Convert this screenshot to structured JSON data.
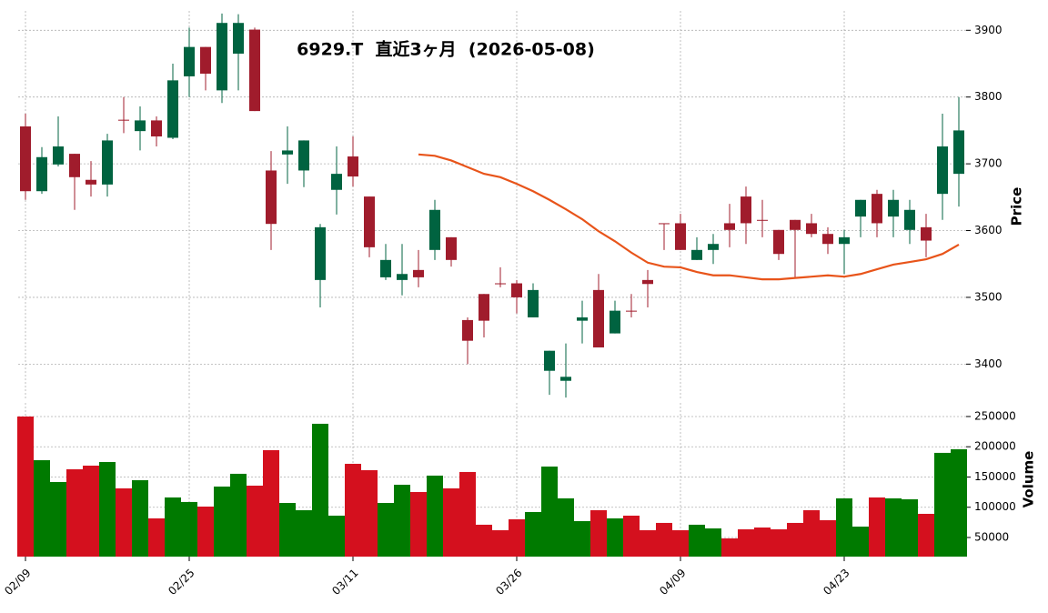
{
  "chart_data": [
    {
      "type": "candlestick",
      "title": "6929.T  直近3ヶ月  (2026-05-08)",
      "ylabel": "Price",
      "categories": [
        "02/09",
        null,
        null,
        null,
        null,
        null,
        null,
        null,
        null,
        null,
        "02/25",
        null,
        null,
        null,
        null,
        null,
        null,
        null,
        null,
        null,
        "03/11",
        null,
        null,
        null,
        null,
        null,
        null,
        null,
        null,
        null,
        "03/26",
        null,
        null,
        null,
        null,
        null,
        null,
        null,
        null,
        null,
        "04/09",
        null,
        null,
        null,
        null,
        null,
        null,
        null,
        null,
        null,
        "04/23",
        null,
        null,
        null,
        null,
        null,
        null,
        null
      ],
      "open": [
        3756,
        3659,
        3699,
        3715,
        3676,
        3669,
        3766,
        3749,
        3765,
        3739,
        3831,
        3875,
        3810,
        3865,
        3901,
        3690,
        3714,
        3690,
        3526,
        3661,
        3711,
        3651,
        3530,
        3526,
        3541,
        3571,
        3590,
        3466,
        3505,
        3521,
        3521,
        3470,
        3390,
        3375,
        3465,
        3511,
        3446,
        3480,
        3526,
        3611,
        3611,
        3556,
        3571,
        3611,
        3651,
        3616,
        3601,
        3616,
        3611,
        3595,
        3580,
        3621,
        3655,
        3621,
        3601,
        3605,
        3655,
        3685
      ],
      "high": [
        3775,
        3725,
        3771,
        3715,
        3704,
        3745,
        3800,
        3786,
        3771,
        3850,
        3904,
        3875,
        3925,
        3924,
        3904,
        3719,
        3756,
        3735,
        3610,
        3726,
        3741,
        3651,
        3580,
        3580,
        3571,
        3646,
        3590,
        3470,
        3505,
        3545,
        3526,
        3521,
        3420,
        3431,
        3495,
        3535,
        3495,
        3505,
        3541,
        3611,
        3625,
        3590,
        3595,
        3640,
        3666,
        3646,
        3601,
        3616,
        3625,
        3605,
        3601,
        3646,
        3661,
        3661,
        3646,
        3625,
        3775,
        3800
      ],
      "low": [
        3646,
        3655,
        3696,
        3631,
        3651,
        3651,
        3746,
        3720,
        3726,
        3737,
        3800,
        3810,
        3791,
        3810,
        3779,
        3571,
        3670,
        3665,
        3485,
        3624,
        3666,
        3560,
        3526,
        3503,
        3515,
        3556,
        3546,
        3400,
        3440,
        3515,
        3476,
        3470,
        3354,
        3350,
        3431,
        3425,
        3446,
        3470,
        3485,
        3571,
        3571,
        3556,
        3550,
        3575,
        3580,
        3590,
        3556,
        3530,
        3590,
        3565,
        3535,
        3590,
        3590,
        3590,
        3580,
        3560,
        3616,
        3636
      ],
      "close": [
        3659,
        3710,
        3726,
        3680,
        3669,
        3735,
        3765,
        3765,
        3741,
        3825,
        3875,
        3835,
        3911,
        3911,
        3779,
        3610,
        3720,
        3735,
        3605,
        3685,
        3681,
        3575,
        3556,
        3535,
        3530,
        3631,
        3556,
        3435,
        3465,
        3520,
        3500,
        3511,
        3420,
        3381,
        3470,
        3425,
        3480,
        3479,
        3520,
        3610,
        3571,
        3571,
        3580,
        3601,
        3611,
        3615,
        3565,
        3601,
        3595,
        3580,
        3590,
        3646,
        3611,
        3646,
        3631,
        3585,
        3726,
        3750
      ],
      "ma": {
        "color": "#e8541a",
        "values": [
          null,
          null,
          null,
          null,
          null,
          null,
          null,
          null,
          null,
          null,
          null,
          null,
          null,
          null,
          null,
          null,
          null,
          null,
          null,
          null,
          null,
          null,
          null,
          null,
          3714,
          3712,
          3705,
          3695,
          3685,
          3680,
          3670,
          3659,
          3646,
          3632,
          3617,
          3599,
          3584,
          3567,
          3552,
          3546,
          3545,
          3538,
          3533,
          3533,
          3530,
          3527,
          3527,
          3529,
          3531,
          3533,
          3531,
          3535,
          3542,
          3549,
          3553,
          3557,
          3565,
          3579
        ]
      },
      "up_color": "#006340",
      "down_color": "#a01c2c",
      "ylim": [
        3346,
        3929
      ],
      "yticks": [
        3400,
        3500,
        3600,
        3700,
        3800,
        3900
      ],
      "grid": true
    },
    {
      "type": "bar",
      "ylabel": "Volume",
      "values": [
        250000,
        177800,
        141700,
        162800,
        168800,
        174800,
        131200,
        144700,
        81600,
        116200,
        108700,
        101100,
        134200,
        155300,
        135700,
        194400,
        107100,
        95100,
        238000,
        86100,
        171800,
        161300,
        107100,
        137200,
        125200,
        152300,
        131200,
        158300,
        71100,
        62000,
        80100,
        92100,
        167300,
        114700,
        77100,
        95100,
        81600,
        86100,
        62000,
        74100,
        62000,
        71100,
        65000,
        48500,
        63500,
        66500,
        63500,
        74100,
        95100,
        78600,
        114700,
        68000,
        116200,
        114700,
        113200,
        89100,
        189900,
        195900
      ],
      "up_color": "#007a00",
      "down_color": "#d4101e",
      "ylim": [
        18400,
        272500
      ],
      "yticks": [
        50000,
        100000,
        150000,
        200000,
        250000
      ],
      "grid": true
    }
  ]
}
